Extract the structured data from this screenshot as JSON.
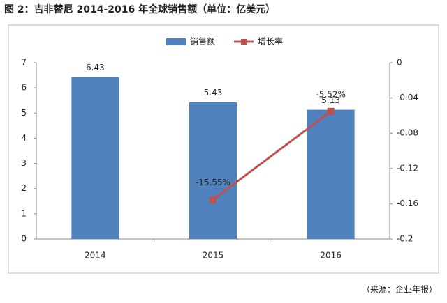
{
  "chart_data": {
    "type": "bar-line",
    "title": "图 2：吉非替尼 2014-2016 年全球销售额（单位：亿美元）",
    "source": "（来源：企业年报）",
    "categories": [
      "2014",
      "2015",
      "2016"
    ],
    "series": [
      {
        "name": "销售额",
        "type": "bar",
        "color": "#4f81bd",
        "values": [
          6.43,
          5.43,
          5.13
        ],
        "value_labels": [
          "6.43",
          "5.43",
          "5.13"
        ]
      },
      {
        "name": "增长率",
        "type": "line",
        "axis": "y2",
        "color": "#c0504d",
        "values": [
          null,
          -0.1555,
          -0.0552
        ],
        "value_labels": [
          null,
          "-15.55%",
          "-5.52%"
        ]
      }
    ],
    "ylim": [
      0,
      7
    ],
    "yticks": [
      0,
      1,
      2,
      3,
      4,
      5,
      6,
      7
    ],
    "y2lim": [
      -0.2,
      0
    ],
    "y2ticks": [
      0,
      -0.04,
      -0.08,
      -0.12,
      -0.16,
      -0.2
    ],
    "legend": "top"
  }
}
